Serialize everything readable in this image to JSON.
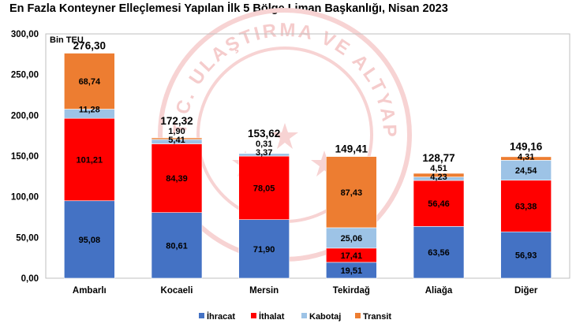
{
  "title": "En Fazla Konteyner Elleçlemesi Yapılan İlk 5 Bölge Liman Başkanlığı, Nisan 2023",
  "watermark": {
    "text": "T.C. ULAŞTIRMA VE ALTYAPI BAKANLIĞI",
    "color": "#f2b8b8"
  },
  "chart_data": {
    "type": "bar",
    "stacked": true,
    "unit_label": "Bin TEU",
    "ylim": [
      0,
      300
    ],
    "yticks": [
      "0,00",
      "50,00",
      "100,00",
      "150,00",
      "200,00",
      "250,00",
      "300,00"
    ],
    "grid": false,
    "legend_position": "bottom",
    "categories": [
      "Ambarlı",
      "Kocaeli",
      "Mersin",
      "Tekirdağ",
      "Aliağa",
      "Diğer"
    ],
    "totals": [
      "276,30",
      "172,32",
      "153,62",
      "149,41",
      "128,77",
      "149,16"
    ],
    "series": [
      {
        "name": "İhracat",
        "color": "#4472c4",
        "label_color": "#000000",
        "values": [
          95.08,
          80.61,
          71.9,
          19.51,
          63.56,
          56.93
        ],
        "labels": [
          "95,08",
          "80,61",
          "71,90",
          "19,51",
          "63,56",
          "56,93"
        ]
      },
      {
        "name": "İthalat",
        "color": "#ff0000",
        "label_color": "#000000",
        "values": [
          101.21,
          84.39,
          78.05,
          17.41,
          56.46,
          63.38
        ],
        "labels": [
          "101,21",
          "84,39",
          "78,05",
          "17,41",
          "56,46",
          "63,38"
        ]
      },
      {
        "name": "Kabotaj",
        "color": "#9dc3e6",
        "label_color": "#000000",
        "values": [
          11.28,
          5.41,
          3.37,
          25.06,
          4.23,
          24.54
        ],
        "labels": [
          "11,28",
          "5,41",
          "3,37",
          "25,06",
          "4,23",
          "24,54"
        ]
      },
      {
        "name": "Transit",
        "color": "#ed7d31",
        "label_color": "#000000",
        "values": [
          68.74,
          1.9,
          0.31,
          87.43,
          4.51,
          4.31
        ],
        "labels": [
          "68,74",
          "1,90",
          "0,31",
          "87,43",
          "4,51",
          "4,31"
        ]
      }
    ]
  }
}
